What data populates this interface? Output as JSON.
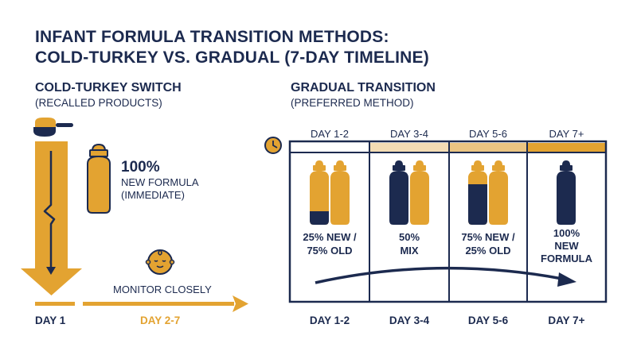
{
  "title_line1": "INFANT FORMULA TRANSITION METHODS:",
  "title_line2": "COLD-TURKEY VS. GRADUAL (7-DAY TIMELINE)",
  "colors": {
    "navy": "#1c2a4f",
    "gold": "#e3a331",
    "light_gold": "#f3dcb4",
    "mid_gold": "#eac482"
  },
  "cold_turkey": {
    "heading": "COLD-TURKEY SWITCH",
    "subheading": "(RECALLED PRODUCTS)",
    "percent": "100%",
    "label_line1": "NEW FORMULA",
    "label_line2": "(IMMEDIATE)",
    "monitor": "MONITOR CLOSELY",
    "day_start": "DAY 1",
    "day_rest": "DAY 2-7"
  },
  "gradual": {
    "heading": "GRADUAL TRANSITION",
    "subheading": "(PREFERRED METHOD)",
    "columns": [
      {
        "top_label": "DAY 1-2",
        "line1": "25% NEW /",
        "line2": "75% OLD",
        "line3": "",
        "bottom_label": "DAY 1-2",
        "new_fraction": 0.25
      },
      {
        "top_label": "DAY 3-4",
        "line1": "50%",
        "line2": "MIX",
        "line3": "",
        "bottom_label": "DAY 3-4",
        "new_fraction": 0.5
      },
      {
        "top_label": "DAY 5-6",
        "line1": "75% NEW /",
        "line2": "25% OLD",
        "line3": "",
        "bottom_label": "DAY 5-6",
        "new_fraction": 0.75
      },
      {
        "top_label": "DAY 7+",
        "line1": "100%",
        "line2": "NEW",
        "line3": "FORMULA",
        "bottom_label": "DAY 7+",
        "new_fraction": 1.0
      }
    ]
  }
}
